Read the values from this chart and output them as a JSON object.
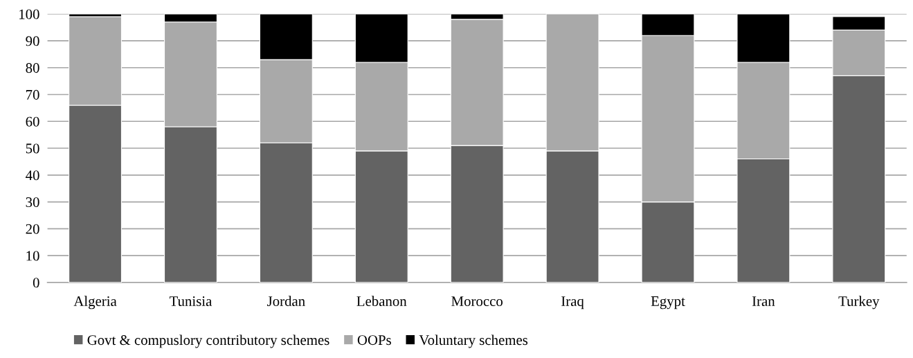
{
  "chart_data": {
    "type": "bar",
    "stacked": true,
    "categories": [
      "Algeria",
      "Tunisia",
      "Jordan",
      "Lebanon",
      "Morocco",
      "Iraq",
      "Egypt",
      "Iran",
      "Turkey"
    ],
    "series": [
      {
        "name": "Govt & compuslory contributory schemes",
        "color": "#636363",
        "values": [
          66,
          58,
          52,
          49,
          51,
          49,
          30,
          46,
          77
        ]
      },
      {
        "name": "OOPs",
        "color": "#a9a9a9",
        "values": [
          33,
          39,
          31,
          33,
          47,
          51,
          62,
          36,
          17
        ]
      },
      {
        "name": "Voluntary schemes",
        "color": "#000000",
        "values": [
          1,
          3,
          17,
          18,
          2,
          null,
          8,
          18,
          5
        ]
      }
    ],
    "ylim": [
      0,
      100
    ],
    "yticks": [
      0,
      10,
      20,
      30,
      40,
      50,
      60,
      70,
      80,
      90,
      100
    ],
    "grid": "y",
    "legend": "bottom"
  }
}
